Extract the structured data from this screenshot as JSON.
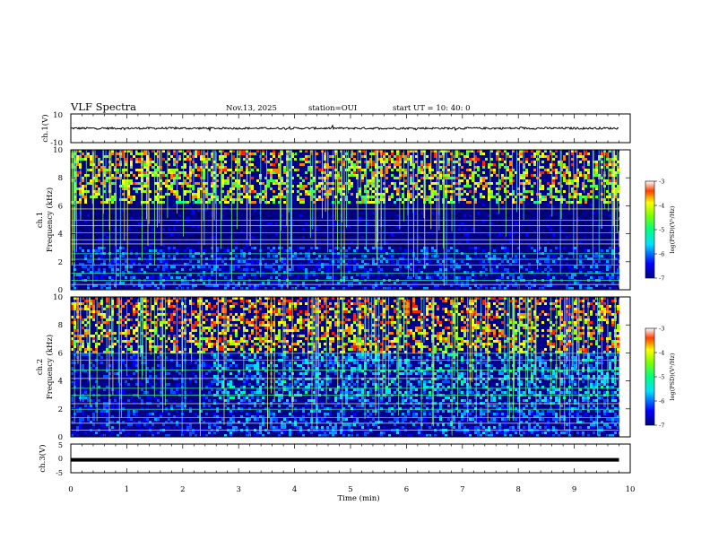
{
  "header": {
    "title": "VLF Spectra",
    "date": "Nov.13, 2025",
    "station": "station=OUI",
    "start": "start UT =  10: 40: 0"
  },
  "chart_data": [
    {
      "type": "line",
      "panel": "ch1-waveform",
      "ylabel": "ch.1(V)",
      "ylim": [
        -10,
        10
      ],
      "yticks": [
        "10",
        "-10"
      ],
      "baseline_value": 0,
      "xlim": [
        0,
        10
      ],
      "data_end_min": 9.8
    },
    {
      "type": "heatmap",
      "panel": "ch1-spectrogram",
      "ylabel_top": "ch.1",
      "ylabel": "Frequency (kHz)",
      "ylim": [
        0,
        10
      ],
      "yticks": [
        "0",
        "2",
        "4",
        "6",
        "8",
        "10"
      ],
      "xlim": [
        0,
        10
      ],
      "data_end_min": 9.8,
      "colorbar": {
        "label": "log(PSD)(V²/Hz)",
        "range": [
          -7,
          -3
        ],
        "ticks": [
          "-3",
          "-4",
          "-5",
          "-6",
          "-7"
        ]
      }
    },
    {
      "type": "heatmap",
      "panel": "ch2-spectrogram",
      "ylabel_top": "ch.2",
      "ylabel": "Frequency (kHz)",
      "ylim": [
        0,
        10
      ],
      "yticks": [
        "0",
        "2",
        "4",
        "6",
        "8",
        "10"
      ],
      "xlim": [
        0,
        10
      ],
      "data_end_min": 9.8,
      "colorbar": {
        "label": "log(PSD)(V²/Hz)",
        "range": [
          -7,
          -3
        ],
        "ticks": [
          "-3",
          "-4",
          "-5",
          "-6",
          "-7"
        ]
      }
    },
    {
      "type": "line",
      "panel": "ch3-waveform",
      "ylabel": "ch.3(V)",
      "ylim": [
        -5,
        5
      ],
      "yticks": [
        "5",
        "0",
        "-5"
      ],
      "baseline_value": -0.5,
      "xlim": [
        0,
        10
      ],
      "data_end_min": 9.8
    }
  ],
  "xaxis": {
    "label": "Time (min)",
    "ticks": [
      "0",
      "1",
      "2",
      "3",
      "4",
      "5",
      "6",
      "7",
      "8",
      "9",
      "10"
    ]
  }
}
